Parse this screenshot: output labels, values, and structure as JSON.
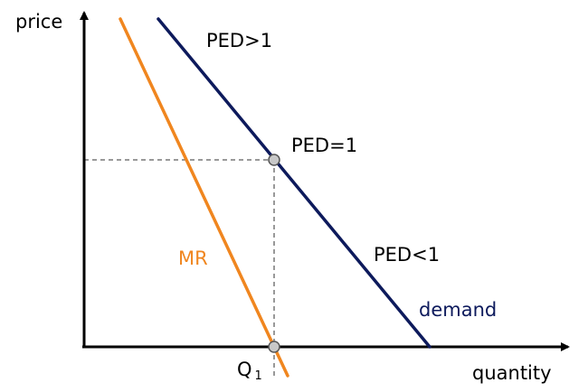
{
  "diagram": {
    "axes": {
      "y_label": "price",
      "x_label": "quantity"
    },
    "curves": {
      "demand": {
        "label": "demand",
        "color": "#0d1a5c"
      },
      "mr": {
        "label": "MR",
        "color": "#f0861f"
      }
    },
    "elasticity_labels": {
      "elastic": "PED>1",
      "unit": "PED=1",
      "inelastic": "PED<1"
    },
    "quantity_marker": {
      "label": "Q",
      "subscript": "1"
    },
    "colors": {
      "axis": "#000000",
      "guide": "#333333",
      "point_fill": "#c8c8c8",
      "point_stroke": "#555555",
      "text": "#000000"
    }
  }
}
